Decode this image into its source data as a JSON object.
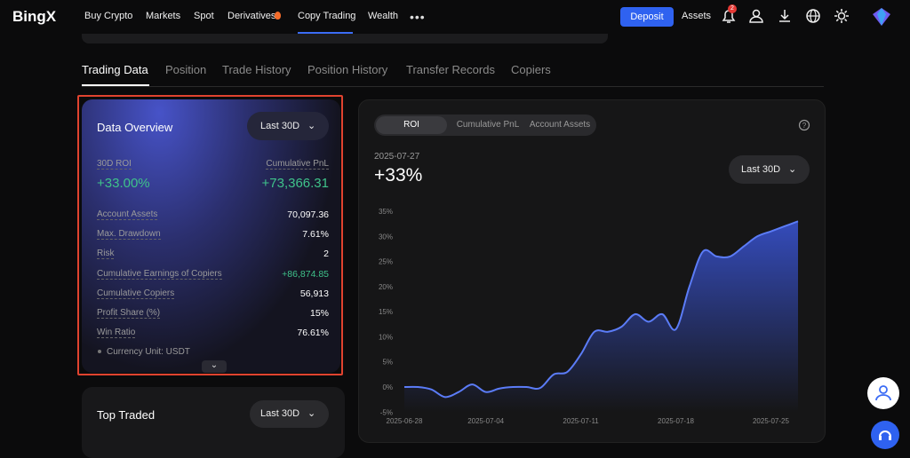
{
  "nav": {
    "logo": "BingX",
    "items": [
      "Buy Crypto",
      "Markets",
      "Spot",
      "Derivatives",
      "Copy Trading",
      "Wealth"
    ],
    "deposit": "Deposit",
    "assets": "Assets",
    "badge": "2"
  },
  "tabs": [
    "Trading Data",
    "Position",
    "Trade History",
    "Position History",
    "Transfer Records",
    "Copiers"
  ],
  "overview": {
    "title": "Data Overview",
    "period": "Last 30D",
    "roi_label": "30D ROI",
    "roi": "+33.00%",
    "pnl_label": "Cumulative PnL",
    "pnl": "+73,366.31",
    "rows": [
      {
        "label": "Account Assets",
        "value": "70,097.36"
      },
      {
        "label": "Max. Drawdown",
        "value": "7.61%"
      },
      {
        "label": "Risk",
        "value": "2"
      },
      {
        "label": "Cumulative Earnings of Copiers",
        "value": "+86,874.85"
      },
      {
        "label": "Cumulative Copiers",
        "value": "56,913"
      },
      {
        "label": "Profit Share (%)",
        "value": "15%"
      },
      {
        "label": "Win Ratio",
        "value": "76.61%"
      }
    ],
    "unit": "Currency Unit: USDT"
  },
  "top_traded": {
    "title": "Top Traded",
    "period": "Last 30D"
  },
  "chart_panel": {
    "toggles": [
      "ROI",
      "Cumulative PnL",
      "Account Assets"
    ],
    "date": "2025-07-27",
    "value": "+33%",
    "period": "Last 30D"
  },
  "chart_data": {
    "type": "area",
    "color": "#5b7cf7",
    "categories": [
      "2025-06-28",
      null,
      null,
      null,
      null,
      null,
      "2025-07-04",
      null,
      null,
      null,
      null,
      null,
      null,
      "2025-07-11",
      null,
      null,
      null,
      null,
      null,
      null,
      "2025-07-18",
      null,
      null,
      null,
      null,
      null,
      null,
      "2025-07-25",
      null,
      null
    ],
    "values": [
      0,
      0,
      -0.5,
      -2,
      -1,
      0.5,
      -1,
      -0.3,
      0,
      0,
      -0.2,
      2.5,
      3,
      6.5,
      11,
      11,
      12,
      14.5,
      13,
      14.5,
      11.5,
      20,
      27,
      26,
      26,
      28,
      30,
      31,
      32,
      33
    ],
    "ylim": [
      -5,
      35
    ],
    "yticks": [
      {
        "value": -5,
        "label": "-5%"
      },
      {
        "value": 0,
        "label": "0%"
      },
      {
        "value": 5,
        "label": "5%"
      },
      {
        "value": 10,
        "label": "10%"
      },
      {
        "value": 15,
        "label": "15%"
      },
      {
        "value": 20,
        "label": "20%"
      },
      {
        "value": 25,
        "label": "25%"
      },
      {
        "value": 30,
        "label": "30%"
      },
      {
        "value": 35,
        "label": "35%"
      }
    ],
    "grid": false
  }
}
